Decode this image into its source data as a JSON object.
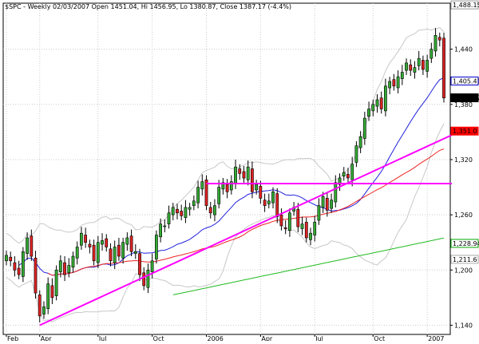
{
  "chart_data": {
    "type": "candlestick",
    "header": {
      "prefix": "$",
      "symbol": "SPC",
      "ohlc_text": " - Weekly 02/03/2007 Open 1451.04, Hi 1456.95, Lo 1380.87, Close 1387.17 (-4.4%)"
    },
    "y_axis": {
      "min": 1130,
      "max": 1490,
      "ticks": [
        1140,
        1200,
        1260,
        1320,
        1380,
        1440
      ],
      "tick_labels": [
        "1,140",
        "1,200",
        "1,260",
        "1,320",
        "1,380",
        "1,440"
      ]
    },
    "x_axis": {
      "labels": [
        "Feb",
        "Apr",
        "Jul",
        "Oct",
        "2006",
        "Apr",
        "Jul",
        "Oct",
        "2007"
      ],
      "label_index": [
        0,
        8,
        22,
        35,
        48,
        61,
        74,
        88,
        101
      ]
    },
    "price_tags": [
      {
        "value": 1488.15,
        "text": "1,488.15",
        "bg": "#ffffff",
        "fg": "#000000",
        "border": "#999999"
      },
      {
        "value": 1405.41,
        "text": "1,405.41",
        "bg": "#ffffff",
        "fg": "#0000cc",
        "border": "#0000cc"
      },
      {
        "value": 1387.17,
        "text": "1,387.17",
        "bg": "#000000",
        "fg": "#ffffff",
        "border": "#000000"
      },
      {
        "value": 1351.0,
        "text": "1,351.0",
        "bg": "#ff0000",
        "fg": "#ff0000",
        "border": "#ff0000"
      },
      {
        "value": 1228.94,
        "text": "1,228.94",
        "bg": "#ffffff",
        "fg": "#008800",
        "border": "#00aa00"
      },
      {
        "value": 1211.6,
        "text": "1,211.6",
        "bg": "#ffffff",
        "fg": "#888888",
        "border": "#aaaaaa"
      }
    ],
    "series_colors": {
      "up_body": "#33aa33",
      "down_body": "#dd2222",
      "upper_band": "#c8c8c8",
      "lower_band": "#c8c8c8",
      "mid_ma": "#2222dd",
      "ma50": "#ee2222",
      "ma200": "#22bb22",
      "trendlines": "#ff00ff"
    },
    "closes": [
      1216,
      1210,
      1200,
      1195,
      1220,
      1235,
      1215,
      1175,
      1150,
      1160,
      1185,
      1170,
      1200,
      1210,
      1195,
      1205,
      1215,
      1225,
      1240,
      1230,
      1225,
      1210,
      1230,
      1232,
      1225,
      1210,
      1225,
      1215,
      1230,
      1235,
      1220,
      1220,
      1195,
      1183,
      1200,
      1210,
      1238,
      1250,
      1248,
      1262,
      1268,
      1262,
      1259,
      1268,
      1268,
      1275,
      1290,
      1296,
      1270,
      1262,
      1270,
      1290,
      1295,
      1285,
      1296,
      1312,
      1305,
      1300,
      1312,
      1285,
      1293,
      1278,
      1270,
      1275,
      1285,
      1258,
      1248,
      1245,
      1262,
      1268,
      1247,
      1250,
      1235,
      1240,
      1252,
      1270,
      1280,
      1265,
      1276,
      1295,
      1300,
      1306,
      1300,
      1315,
      1335,
      1345,
      1365,
      1375,
      1380,
      1385,
      1375,
      1400,
      1405,
      1400,
      1410,
      1415,
      1425,
      1417,
      1420,
      1430,
      1418,
      1428,
      1440,
      1455,
      1450,
      1387
    ],
    "trendline_upper_pts": [
      [
        58,
        1140
      ],
      [
        132,
        1293
      ]
    ],
    "trendline_res_pts": [
      [
        58,
        1294
      ],
      [
        132,
        1294
      ]
    ]
  }
}
